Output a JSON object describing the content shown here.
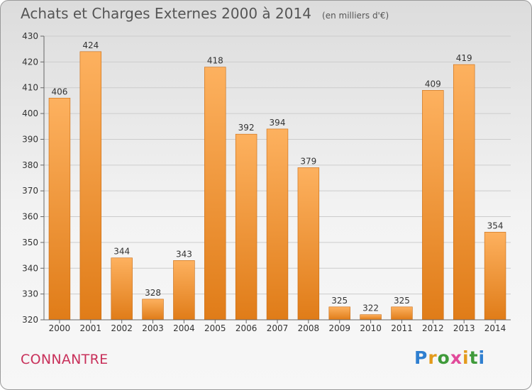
{
  "title": "Achats et Charges Externes 2000 à 2014",
  "unit": "(en milliers d'€)",
  "commune": "CONNANTRE",
  "logo": {
    "text": "Proxiti",
    "letter_colors": [
      "#2f7fd0",
      "#e39a1b",
      "#3f9a3a",
      "#e14a9a",
      "#e39a1b",
      "#3f9a3a",
      "#2f7fd0"
    ]
  },
  "colors": {
    "bar_light": "#fdb15f",
    "bar_dark": "#e07c18",
    "bar_edge": "#c96a10",
    "grid": "#cccccc",
    "text": "#333333"
  },
  "chart_data": {
    "type": "bar",
    "title": "Achats et Charges Externes 2000 à 2014",
    "categories": [
      "2000",
      "2001",
      "2002",
      "2003",
      "2004",
      "2005",
      "2006",
      "2007",
      "2008",
      "2009",
      "2010",
      "2011",
      "2012",
      "2013",
      "2014"
    ],
    "values": [
      406,
      424,
      344,
      328,
      343,
      418,
      392,
      394,
      379,
      325,
      322,
      325,
      409,
      419,
      354
    ],
    "ylim": [
      320,
      430
    ],
    "yticks": [
      320,
      330,
      340,
      350,
      360,
      370,
      380,
      390,
      400,
      410,
      420,
      430
    ],
    "grid": true,
    "data_labels": true
  }
}
